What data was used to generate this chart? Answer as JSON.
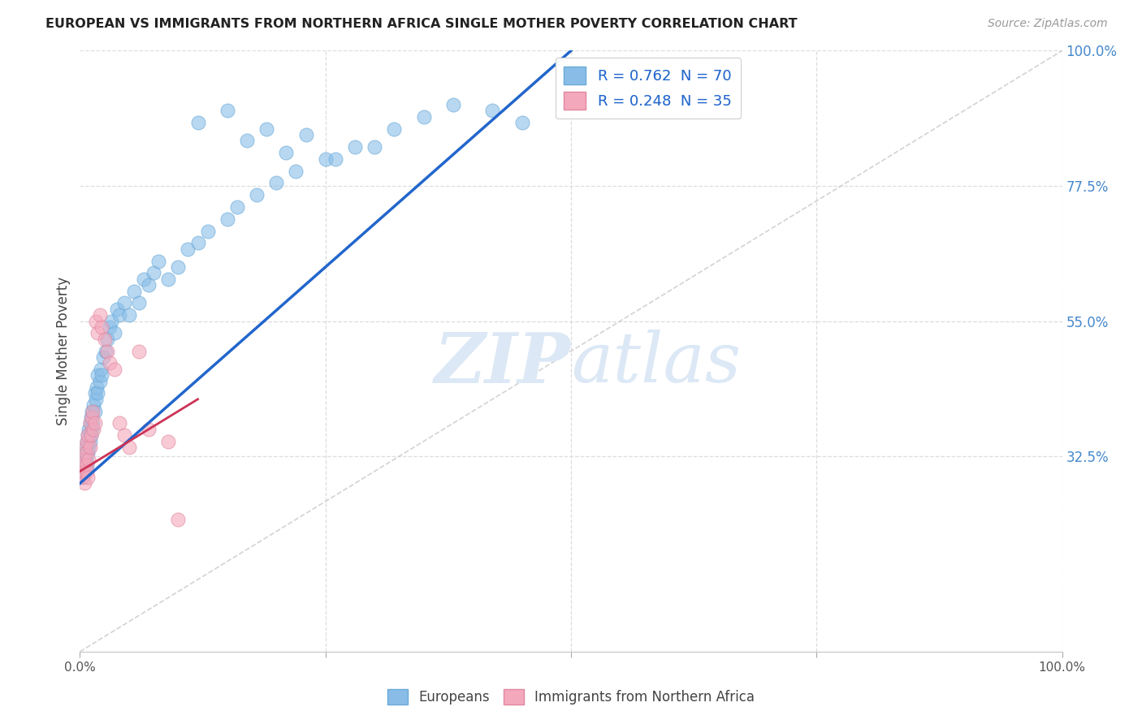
{
  "title": "EUROPEAN VS IMMIGRANTS FROM NORTHERN AFRICA SINGLE MOTHER POVERTY CORRELATION CHART",
  "source": "Source: ZipAtlas.com",
  "ylabel": "Single Mother Poverty",
  "legend_blue_label": "R = 0.762  N = 70",
  "legend_pink_label": "R = 0.248  N = 35",
  "legend_blue_group": "Europeans",
  "legend_pink_group": "Immigrants from Northern Africa",
  "blue_color": "#89bde8",
  "blue_edge": "#6aaad8",
  "pink_color": "#f4a8bc",
  "pink_edge": "#e088a0",
  "blue_line_color": "#2266cc",
  "pink_line_color": "#cc3355",
  "diag_color": "#c8c8c8",
  "grid_color": "#dddddd",
  "watermark_color": "#dce8f5",
  "background_color": "#ffffff",
  "blue_x": [
    0.003,
    0.004,
    0.005,
    0.005,
    0.006,
    0.006,
    0.007,
    0.007,
    0.008,
    0.008,
    0.009,
    0.009,
    0.01,
    0.01,
    0.011,
    0.011,
    0.012,
    0.012,
    0.013,
    0.014,
    0.015,
    0.015,
    0.016,
    0.017,
    0.018,
    0.018,
    0.02,
    0.021,
    0.022,
    0.024,
    0.026,
    0.028,
    0.03,
    0.032,
    0.035,
    0.038,
    0.04,
    0.045,
    0.05,
    0.055,
    0.06,
    0.065,
    0.07,
    0.075,
    0.08,
    0.09,
    0.1,
    0.11,
    0.12,
    0.13,
    0.15,
    0.16,
    0.18,
    0.2,
    0.22,
    0.25,
    0.28,
    0.32,
    0.35,
    0.38,
    0.12,
    0.15,
    0.17,
    0.19,
    0.21,
    0.23,
    0.26,
    0.3,
    0.42,
    0.45
  ],
  "blue_y": [
    0.29,
    0.31,
    0.3,
    0.33,
    0.32,
    0.34,
    0.31,
    0.35,
    0.33,
    0.36,
    0.34,
    0.37,
    0.35,
    0.38,
    0.36,
    0.39,
    0.37,
    0.4,
    0.38,
    0.41,
    0.4,
    0.43,
    0.42,
    0.44,
    0.43,
    0.46,
    0.45,
    0.47,
    0.46,
    0.49,
    0.5,
    0.52,
    0.54,
    0.55,
    0.53,
    0.57,
    0.56,
    0.58,
    0.56,
    0.6,
    0.58,
    0.62,
    0.61,
    0.63,
    0.65,
    0.62,
    0.64,
    0.67,
    0.68,
    0.7,
    0.72,
    0.74,
    0.76,
    0.78,
    0.8,
    0.82,
    0.84,
    0.87,
    0.89,
    0.91,
    0.88,
    0.9,
    0.85,
    0.87,
    0.83,
    0.86,
    0.82,
    0.84,
    0.9,
    0.88
  ],
  "pink_x": [
    0.002,
    0.003,
    0.004,
    0.004,
    0.005,
    0.005,
    0.006,
    0.006,
    0.007,
    0.007,
    0.008,
    0.008,
    0.009,
    0.01,
    0.01,
    0.011,
    0.012,
    0.013,
    0.014,
    0.015,
    0.016,
    0.018,
    0.02,
    0.022,
    0.025,
    0.028,
    0.03,
    0.035,
    0.04,
    0.045,
    0.05,
    0.06,
    0.07,
    0.09,
    0.1
  ],
  "pink_y": [
    0.29,
    0.31,
    0.3,
    0.32,
    0.28,
    0.34,
    0.33,
    0.31,
    0.35,
    0.3,
    0.29,
    0.36,
    0.32,
    0.34,
    0.38,
    0.36,
    0.39,
    0.4,
    0.37,
    0.38,
    0.55,
    0.53,
    0.56,
    0.54,
    0.52,
    0.5,
    0.48,
    0.47,
    0.38,
    0.36,
    0.34,
    0.5,
    0.37,
    0.35,
    0.22
  ],
  "blue_line_x": [
    0.0,
    0.5
  ],
  "blue_line_y": [
    0.28,
    1.0
  ],
  "pink_line_x": [
    0.0,
    0.12
  ],
  "pink_line_y": [
    0.3,
    0.42
  ],
  "xlim": [
    0.0,
    1.0
  ],
  "ylim": [
    0.0,
    1.0
  ],
  "yticks": [
    0.325,
    0.55,
    0.775,
    1.0
  ],
  "ytick_labels": [
    "32.5%",
    "55.0%",
    "77.5%",
    "100.0%"
  ],
  "xticks": [
    0.0,
    0.25,
    0.5,
    0.75,
    1.0
  ],
  "xtick_labels": [
    "0.0%",
    "",
    "",
    "",
    "100.0%"
  ],
  "marker_size": 150,
  "marker_alpha": 0.6,
  "tick_color": "#4488cc",
  "axis_color": "#888888"
}
